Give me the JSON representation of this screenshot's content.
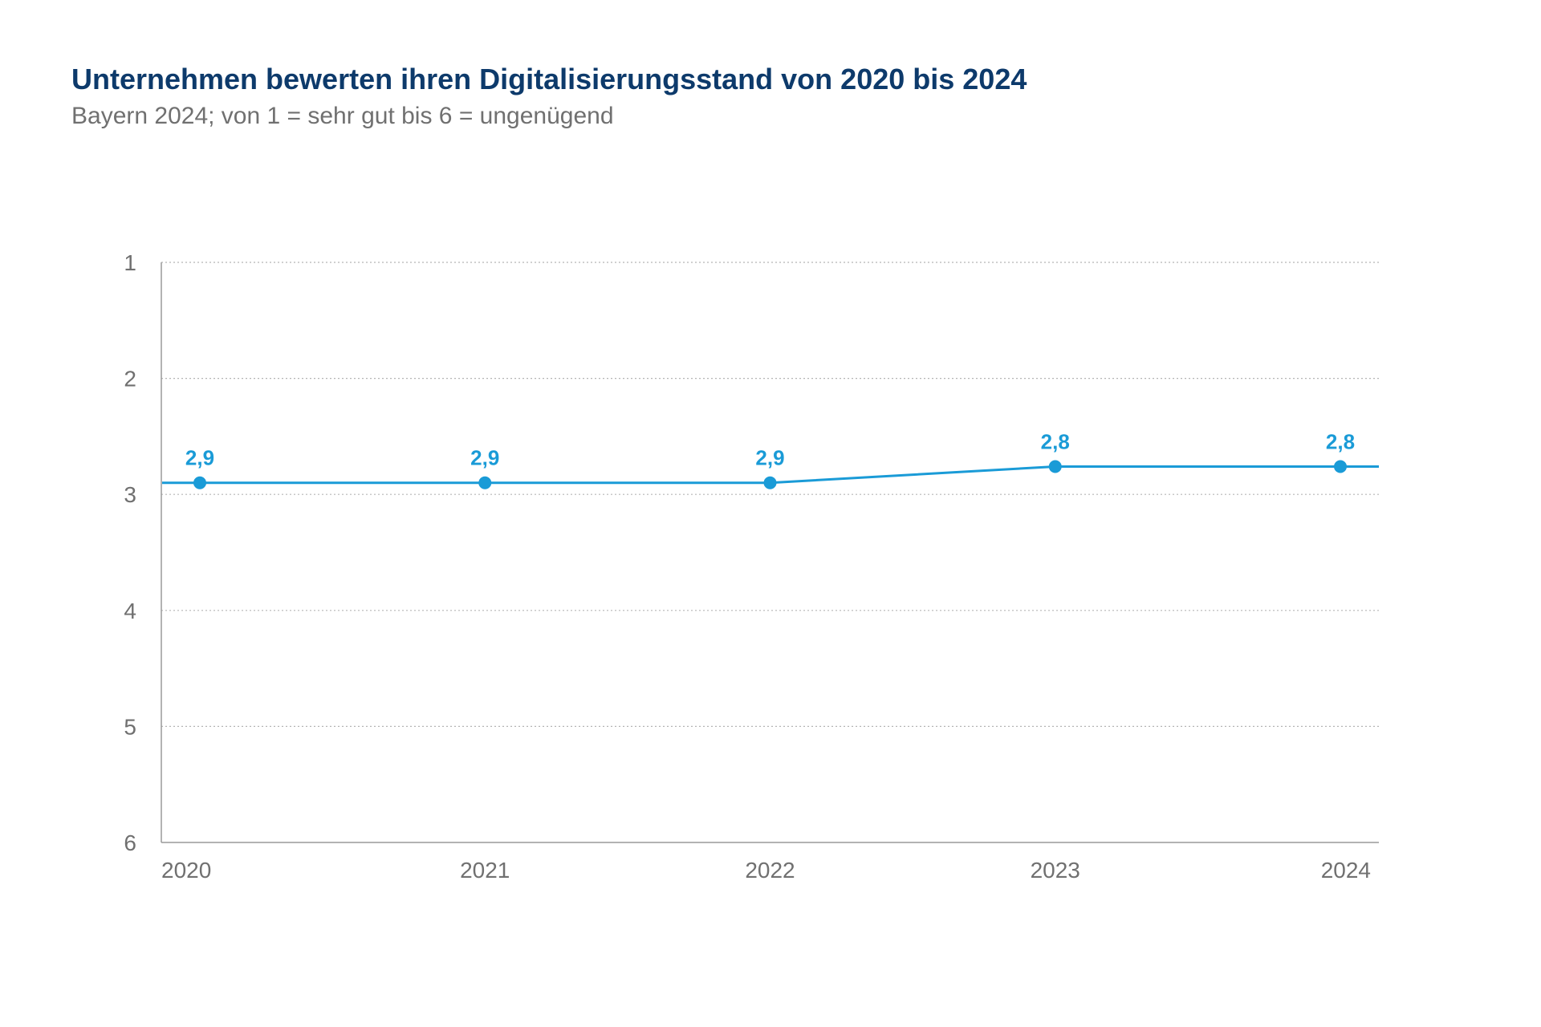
{
  "title": "Unternehmen bewerten ihren Digitalisierungsstand von 2020 bis 2024",
  "subtitle": "Bayern 2024; von 1 = sehr gut bis 6 = ungenügend",
  "colors": {
    "title": "#0d3a6b",
    "series": "#1a9bd7",
    "text": "#707070",
    "axis": "#9a9a9a",
    "grid": "#b5b5b5"
  },
  "chart_data": {
    "type": "line",
    "title": "Unternehmen bewerten ihren Digitalisierungsstand von 2020 bis 2024",
    "subtitle": "Bayern 2024; von 1 = sehr gut bis 6 = ungenügend",
    "xlabel": "",
    "ylabel": "",
    "categories": [
      "2020",
      "2021",
      "2022",
      "2023",
      "2024"
    ],
    "y_ticks": [
      1,
      2,
      3,
      4,
      5,
      6
    ],
    "ylim": [
      1,
      6
    ],
    "y_inverted": true,
    "grid": true,
    "legend": "none",
    "series": [
      {
        "values": [
          2.9,
          2.9,
          2.9,
          2.76,
          2.76
        ],
        "labels": [
          "2,9",
          "2,9",
          "2,9",
          "2,8",
          "2,8"
        ]
      }
    ]
  }
}
